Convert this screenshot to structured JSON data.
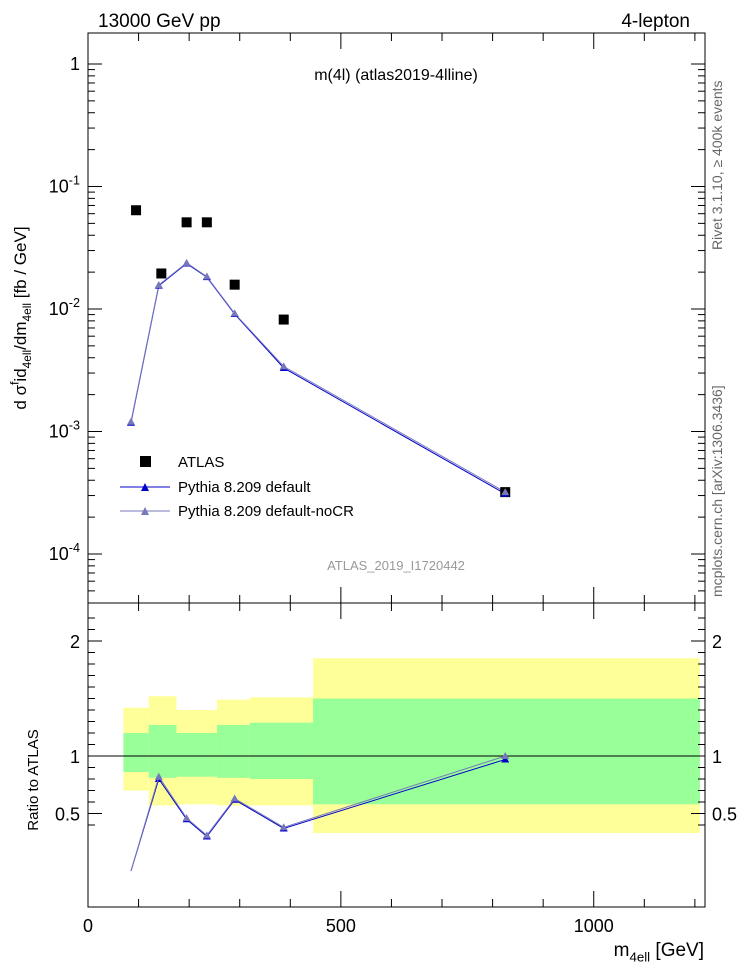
{
  "header": {
    "left": "13000 GeV pp",
    "right": "4-lepton"
  },
  "side_labels": {
    "rivet": "Rivet 3.1.10, ≥ 400k events",
    "mcplots": "mcplots.cern.ch [arXiv:1306.3436]"
  },
  "colors": {
    "data": "#000000",
    "pythia_default": "#0000cc",
    "pythia_nocr": "#7777bb",
    "band_inner": "#99ff99",
    "band_outer": "#ffff99"
  },
  "chart_data": [
    {
      "type": "scatter",
      "title": "m(4l) (atlas2019-4lline)",
      "watermark": "ATLAS_2019_I1720442",
      "ylabel": "d σ^{f}id_{4ell}/dm_{4ell} [fb / GeV]",
      "yscale": "log",
      "ylim": [
        3e-05,
        1.7
      ],
      "xlim": [
        0,
        1220
      ],
      "y_tick_labels": [
        "1",
        "10^{-1}",
        "10^{-2}",
        "10^{-3}",
        "10^{-4}"
      ],
      "legend_position": "lower-left",
      "series": [
        {
          "name": "ATLAS",
          "marker": "square",
          "x": [
            95,
            145,
            195,
            235,
            290,
            387,
            825
          ],
          "y": [
            0.064,
            0.0195,
            0.051,
            0.051,
            0.0158,
            0.0082,
            0.00032
          ]
        },
        {
          "name": "Pythia 8.209 default",
          "marker": "triangle",
          "x": [
            85,
            140,
            195,
            235,
            290,
            387,
            825
          ],
          "y": [
            0.00118,
            0.0155,
            0.0235,
            0.0182,
            0.0091,
            0.0033,
            0.00031
          ]
        },
        {
          "name": "Pythia 8.209 default-noCR",
          "marker": "triangle",
          "x": [
            85,
            140,
            195,
            235,
            290,
            387,
            825
          ],
          "y": [
            0.0012,
            0.0157,
            0.0238,
            0.0184,
            0.0092,
            0.0034,
            0.00032
          ]
        }
      ]
    },
    {
      "type": "line",
      "ylabel": "Ratio to ATLAS",
      "xlabel": "m_{4ell} [GeV]",
      "xlim": [
        0,
        1220
      ],
      "ylim": [
        0.35,
        2.35
      ],
      "x_tick_labels": [
        "0",
        "500",
        "1000"
      ],
      "y_tick_labels": [
        "0.5",
        "1",
        "2"
      ],
      "reference_line": 1,
      "bands": [
        {
          "x0": 70,
          "x1": 120,
          "outer": [
            0.7,
            1.42
          ],
          "inner": [
            0.86,
            1.2
          ]
        },
        {
          "x0": 120,
          "x1": 175,
          "outer": [
            0.57,
            1.52
          ],
          "inner": [
            0.81,
            1.27
          ]
        },
        {
          "x0": 175,
          "x1": 255,
          "outer": [
            0.58,
            1.4
          ],
          "inner": [
            0.82,
            1.2
          ]
        },
        {
          "x0": 255,
          "x1": 320,
          "outer": [
            0.57,
            1.49
          ],
          "inner": [
            0.81,
            1.27
          ]
        },
        {
          "x0": 320,
          "x1": 445,
          "outer": [
            0.57,
            1.51
          ],
          "inner": [
            0.8,
            1.29
          ]
        },
        {
          "x0": 445,
          "x1": 1210,
          "outer": [
            0.33,
            1.85
          ],
          "inner": [
            0.58,
            1.5
          ]
        }
      ],
      "series": [
        {
          "name": "Pythia 8.209 default",
          "x": [
            140,
            195,
            235,
            290,
            387,
            825
          ],
          "y": [
            0.8,
            0.45,
            0.3,
            0.62,
            0.37,
            0.97
          ]
        },
        {
          "name": "Pythia 8.209 default-noCR",
          "x": [
            140,
            195,
            235,
            290,
            387,
            825
          ],
          "y": [
            0.82,
            0.46,
            0.31,
            0.63,
            0.38,
            1.0
          ]
        }
      ]
    }
  ]
}
